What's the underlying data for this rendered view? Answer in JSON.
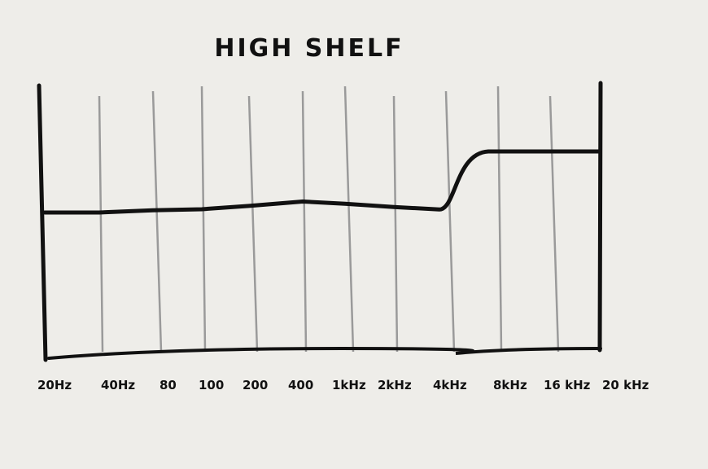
{
  "chart_data": {
    "type": "line",
    "title": "HIGH SHELF",
    "xlabel": "",
    "ylabel": "",
    "x_scale": "log",
    "categories": [
      "20Hz",
      "40Hz",
      "80",
      "100",
      "200",
      "400",
      "1kHz",
      "2kHz",
      "4kHz",
      "8kHz",
      "16 kHz",
      "20 kHz"
    ],
    "x": [
      20,
      40,
      80,
      100,
      200,
      400,
      1000,
      2000,
      4000,
      8000,
      16000,
      20000
    ],
    "series": [
      {
        "values": [
          0,
          0,
          0.02,
          0.03,
          0.06,
          0.1,
          0.08,
          0.05,
          0.05,
          1,
          1,
          1
        ]
      }
    ],
    "grid": true,
    "colors": {
      "line": "#111111",
      "grid": "#9a9a9a",
      "background": "#eeede9"
    }
  }
}
